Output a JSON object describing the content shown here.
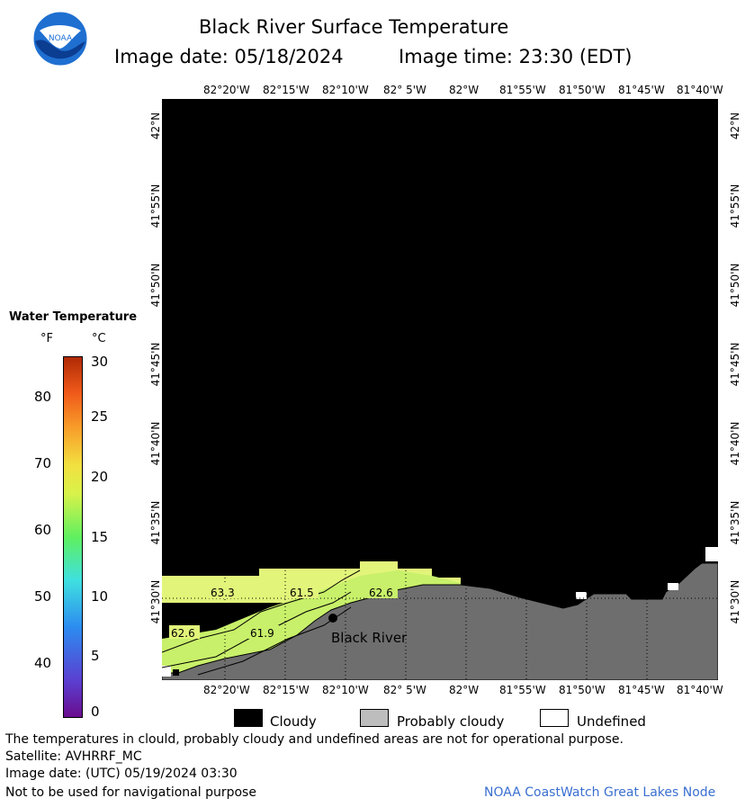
{
  "header": {
    "title": "Black River Surface Temperature",
    "image_date": "Image date: 05/18/2024",
    "image_time": "Image time: 23:30 (EDT)"
  },
  "logo": {
    "text": "NOAA",
    "colors": {
      "sky": "#1f6fd1",
      "sea": "#0b3d91"
    }
  },
  "map": {
    "top_lon_labels": [
      "82°20'W",
      "82°15'W",
      "82°10'W",
      "82° 5'W",
      "82°W",
      "81°55'W",
      "81°50'W",
      "81°45'W",
      "81°40'W"
    ],
    "bottom_lon_labels": [
      "82°20'W",
      "82°15'W",
      "82°10'W",
      "82° 5'W",
      "82°W",
      "81°55'W",
      "81°50'W",
      "81°45'W",
      "81°40'W"
    ],
    "left_lat_labels": [
      "42°N",
      "41°55'N",
      "41°50'N",
      "41°45'N",
      "41°40'N",
      "41°35'N",
      "41°30'N"
    ],
    "right_lat_labels": [
      "42°N",
      "41°55'N",
      "41°50'N",
      "41°45'N",
      "41°40'N",
      "41°35'N",
      "41°30'N"
    ],
    "contour_labels": [
      "63.3",
      "62.6",
      "61.5",
      "62.6",
      "61.9"
    ],
    "place_label": "Black River",
    "colors": {
      "cloud": "#000000",
      "land": "#6e6e6e",
      "water_warm": "#e2f57a",
      "water_cool": "#c8f06a"
    }
  },
  "colorbar": {
    "title": "Water Temperature",
    "unit_f": "°F",
    "unit_c": "°C",
    "f_ticks": [
      "80",
      "70",
      "60",
      "50",
      "40"
    ],
    "c_ticks": [
      "30",
      "25",
      "20",
      "15",
      "10",
      "5",
      "0"
    ]
  },
  "legend": {
    "cloudy": "Cloudy",
    "probably_cloudy": "Probably cloudy",
    "undefined": "Undefined",
    "colors": {
      "cloudy": "#000000",
      "probably_cloudy": "#bdbdbd",
      "undefined": "#ffffff"
    }
  },
  "footer": {
    "disclaimer": "The temperatures in clould, probably cloudy and undefined areas are not for operational purpose.",
    "satellite": "Satellite: AVHRRF_MC",
    "utc_date": "Image date: (UTC) 05/19/2024  03:30",
    "nav_warning": "Not to be used for navigational purpose",
    "credit": "NOAA CoastWatch Great Lakes Node"
  }
}
